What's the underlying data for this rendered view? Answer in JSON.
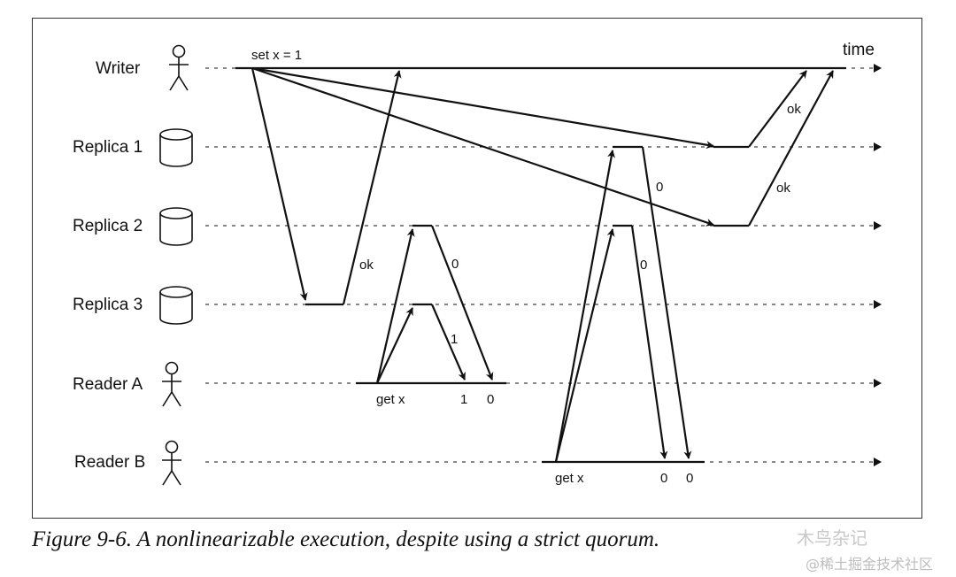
{
  "participants": [
    {
      "id": "writer",
      "label": "Writer",
      "icon": "person-icon"
    },
    {
      "id": "replica1",
      "label": "Replica 1",
      "icon": "database-icon"
    },
    {
      "id": "replica2",
      "label": "Replica 2",
      "icon": "database-icon"
    },
    {
      "id": "replica3",
      "label": "Replica 3",
      "icon": "database-icon"
    },
    {
      "id": "readerA",
      "label": "Reader A",
      "icon": "person-icon"
    },
    {
      "id": "readerB",
      "label": "Reader B",
      "icon": "person-icon"
    }
  ],
  "axis_label": "time",
  "annotations": {
    "set_x": "set x = 1",
    "ok_r3": "ok",
    "ok_r1": "ok",
    "ok_r2": "ok",
    "a_resp_r2": "0",
    "a_resp_r3": "1",
    "b_resp_r1": "0",
    "b_resp_r2": "0",
    "a_get": "get x",
    "a_val1": "1",
    "a_val2": "0",
    "b_get": "get x",
    "b_val1": "0",
    "b_val2": "0"
  },
  "caption": "Figure 9-6. A nonlinearizable execution, despite using a strict quorum.",
  "watermark": {
    "line1": "木鸟杂记",
    "line2": "@稀土掘金技术社区"
  }
}
